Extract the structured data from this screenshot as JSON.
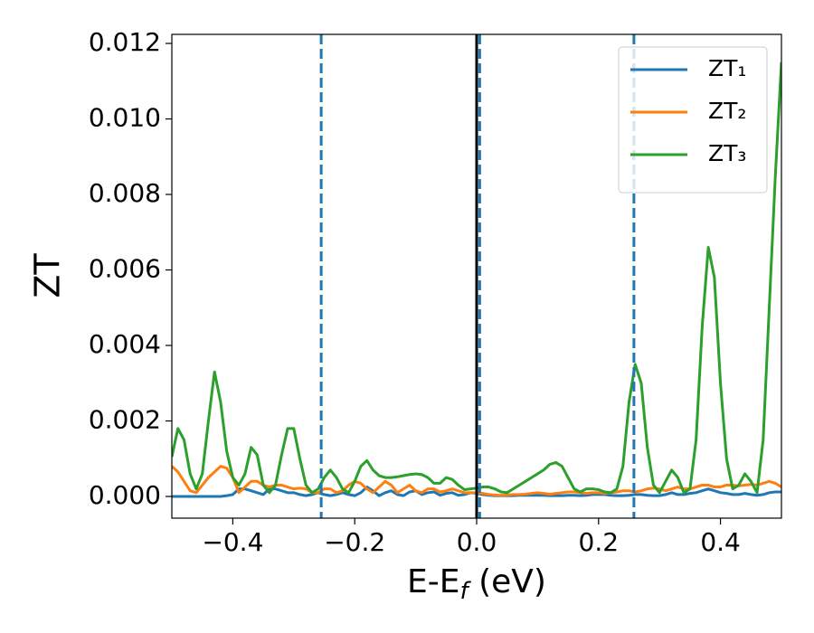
{
  "chart_data": {
    "type": "line",
    "xlabel": [
      "E-E",
      "f",
      " (eV)"
    ],
    "ylabel": "ZT",
    "xlim": [
      -0.5,
      0.5
    ],
    "ylim": [
      -0.000575,
      0.01224
    ],
    "xticks": [
      {
        "value": -0.4,
        "label": "−0.4"
      },
      {
        "value": -0.2,
        "label": "−0.2"
      },
      {
        "value": 0.0,
        "label": "0.0"
      },
      {
        "value": 0.2,
        "label": "0.2"
      },
      {
        "value": 0.4,
        "label": "0.4"
      }
    ],
    "yticks": [
      {
        "value": 0,
        "label": "0.000"
      },
      {
        "value": 0.002,
        "label": "0.002"
      },
      {
        "value": 0.004,
        "label": "0.004"
      },
      {
        "value": 0.006,
        "label": "0.006"
      },
      {
        "value": 0.008,
        "label": "0.008"
      },
      {
        "value": 0.01,
        "label": "0.010"
      },
      {
        "value": 0.012,
        "label": "0.012"
      }
    ],
    "legend": "upper right",
    "vlines": [
      {
        "x": -0.255,
        "color": "#1f77b4",
        "style": "dashed"
      },
      {
        "x": 0.0,
        "color": "#000000",
        "style": "solid"
      },
      {
        "x": 0.005,
        "color": "#1f77b4",
        "style": "dashed"
      },
      {
        "x": 0.258,
        "color": "#1f77b4",
        "style": "dashed"
      }
    ],
    "x": [
      -0.5,
      -0.49,
      -0.48,
      -0.47,
      -0.46,
      -0.45,
      -0.44,
      -0.43,
      -0.42,
      -0.41,
      -0.4,
      -0.39,
      -0.38,
      -0.37,
      -0.36,
      -0.35,
      -0.34,
      -0.33,
      -0.32,
      -0.31,
      -0.3,
      -0.29,
      -0.28,
      -0.27,
      -0.26,
      -0.25,
      -0.24,
      -0.23,
      -0.22,
      -0.21,
      -0.2,
      -0.19,
      -0.18,
      -0.17,
      -0.16,
      -0.15,
      -0.14,
      -0.13,
      -0.12,
      -0.11,
      -0.1,
      -0.09,
      -0.08,
      -0.07,
      -0.06,
      -0.05,
      -0.04,
      -0.03,
      -0.02,
      -0.01,
      0,
      0.01,
      0.02,
      0.03,
      0.04,
      0.05,
      0.06,
      0.07,
      0.08,
      0.09,
      0.1,
      0.11,
      0.12,
      0.13,
      0.14,
      0.15,
      0.16,
      0.17,
      0.18,
      0.19,
      0.2,
      0.21,
      0.22,
      0.23,
      0.24,
      0.25,
      0.26,
      0.27,
      0.28,
      0.29,
      0.3,
      0.31,
      0.32,
      0.33,
      0.34,
      0.35,
      0.36,
      0.37,
      0.38,
      0.39,
      0.4,
      0.41,
      0.42,
      0.43,
      0.44,
      0.45,
      0.46,
      0.47,
      0.48,
      0.49,
      0.5
    ],
    "series": [
      {
        "name": "ZT₁",
        "color": "#1f77b4",
        "values": [
          0,
          0,
          0,
          0,
          0,
          0,
          0,
          0,
          0,
          2e-05,
          5e-05,
          0.0002,
          0.0002,
          0.00015,
          0.0001,
          5e-05,
          0.0002,
          0.0002,
          0.00015,
          0.0001,
          0.0001,
          5e-05,
          2e-05,
          5e-05,
          0.0001,
          5e-05,
          2e-05,
          5e-05,
          0.0001,
          5e-05,
          2e-05,
          0.0001,
          0.00025,
          0.00015,
          2e-05,
          0.0001,
          0.00015,
          5e-05,
          2e-05,
          0.00012,
          0.00015,
          5e-05,
          0.0001,
          0.00012,
          3e-05,
          8e-05,
          0.0001,
          3e-05,
          5e-05,
          0.0001,
          8e-05,
          5e-05,
          3e-05,
          2e-05,
          2e-05,
          2e-05,
          2e-05,
          3e-05,
          3e-05,
          3e-05,
          3e-05,
          3e-05,
          2e-05,
          2e-05,
          2e-05,
          3e-05,
          3e-05,
          2e-05,
          3e-05,
          5e-05,
          5e-05,
          5e-05,
          3e-05,
          2e-05,
          2e-05,
          3e-05,
          5e-05,
          5e-05,
          3e-05,
          2e-05,
          2e-05,
          5e-05,
          0.0001,
          5e-05,
          5e-05,
          8e-05,
          0.0001,
          0.00015,
          0.0002,
          0.00015,
          0.0001,
          8e-05,
          5e-05,
          5e-05,
          8e-05,
          5e-05,
          3e-05,
          5e-05,
          0.0001,
          0.00012,
          0.00012
        ]
      },
      {
        "name": "ZT₂",
        "color": "#ff7f0e",
        "values": [
          0.0008,
          0.00065,
          0.0004,
          0.00015,
          0.0001,
          0.0003,
          0.0005,
          0.00065,
          0.0008,
          0.00075,
          0.0005,
          0.0001,
          0.00025,
          0.0004,
          0.0004,
          0.0003,
          0.00025,
          0.0003,
          0.0003,
          0.00025,
          0.0002,
          0.00022,
          0.0002,
          0.0001,
          0.0001,
          0.0002,
          0.0002,
          0.0001,
          0.00015,
          0.0003,
          0.0004,
          0.00035,
          0.0002,
          0.0001,
          0.00025,
          0.0004,
          0.0003,
          0.0001,
          0.0002,
          0.0003,
          0.00015,
          0.0001,
          0.0002,
          0.0002,
          0.00012,
          0.00015,
          0.0002,
          0.00015,
          0.0001,
          0.0001,
          0.0001,
          8e-05,
          5e-05,
          4e-05,
          3e-05,
          4e-05,
          5e-05,
          5e-05,
          6e-05,
          8e-05,
          0.0001,
          8e-05,
          6e-05,
          8e-05,
          0.0001,
          0.00012,
          0.00012,
          0.0001,
          8e-05,
          0.0001,
          0.0001,
          8e-05,
          0.0001,
          0.00012,
          0.00015,
          0.00015,
          0.00012,
          0.00015,
          0.0002,
          0.00022,
          0.0002,
          0.00015,
          0.0002,
          0.00025,
          0.0002,
          0.0002,
          0.00025,
          0.0003,
          0.0003,
          0.00025,
          0.00025,
          0.0003,
          0.0003,
          0.00028,
          0.0003,
          0.00032,
          0.0003,
          0.00035,
          0.0004,
          0.00035,
          0.00025
        ]
      },
      {
        "name": "ZT₃",
        "color": "#2ca02c",
        "values": [
          0.00105,
          0.0018,
          0.0015,
          0.0006,
          0.0002,
          0.0006,
          0.002,
          0.0033,
          0.0025,
          0.0012,
          0.0005,
          0.0003,
          0.0006,
          0.0013,
          0.0011,
          0.0003,
          0.0001,
          0.0003,
          0.0011,
          0.0018,
          0.0018,
          0.001,
          0.0003,
          0.0001,
          0.0002,
          0.0005,
          0.0007,
          0.0005,
          0.0002,
          0.0001,
          0.0004,
          0.0008,
          0.00095,
          0.0007,
          0.00055,
          0.0005,
          0.0005,
          0.00052,
          0.00055,
          0.00058,
          0.0006,
          0.00058,
          0.0005,
          0.00035,
          0.00035,
          0.0005,
          0.00045,
          0.0003,
          0.00018,
          0.0002,
          0.00022,
          0.00025,
          0.00025,
          0.0002,
          0.00012,
          0.0001,
          0.0002,
          0.0003,
          0.0004,
          0.0005,
          0.0006,
          0.0007,
          0.00085,
          0.0009,
          0.0008,
          0.0005,
          0.0002,
          0.00012,
          0.0002,
          0.0002,
          0.00018,
          0.00012,
          0.0001,
          0.0002,
          0.0008,
          0.0025,
          0.0035,
          0.003,
          0.0013,
          0.0003,
          0.0001,
          0.0004,
          0.0007,
          0.0005,
          0.0001,
          0.0002,
          0.0015,
          0.0045,
          0.0066,
          0.0058,
          0.003,
          0.001,
          0.0002,
          0.0003,
          0.0006,
          0.0004,
          0.0001,
          0.0015,
          0.005,
          0.0085,
          0.0115
        ]
      }
    ]
  }
}
